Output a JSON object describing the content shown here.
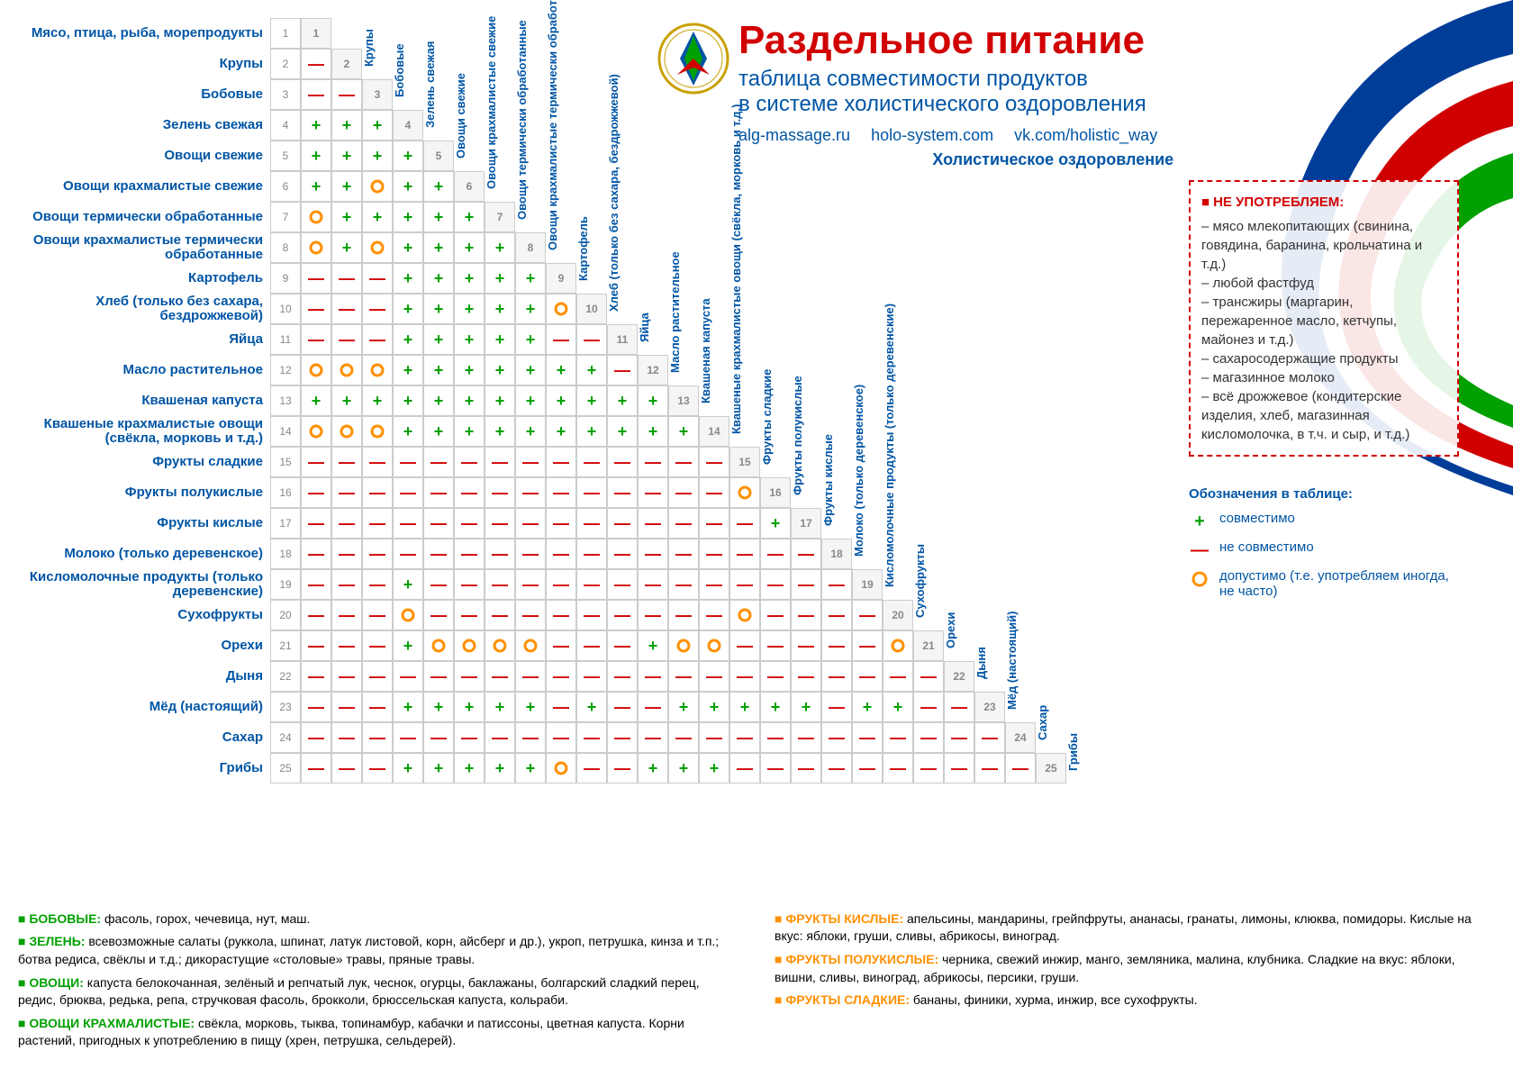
{
  "title": "Раздельное питание",
  "subtitle1": "таблица совместимости продуктов",
  "subtitle2": "в системе холистического оздоровления",
  "links": [
    "alg-massage.ru",
    "holo-system.com",
    "vk.com/holistic_way"
  ],
  "holistic_label": "Холистическое оздоровление",
  "colors": {
    "title": "#d10000",
    "primary": "#0055a5",
    "plus": "#00a000",
    "minus": "#d10000",
    "circle": "#ff9000",
    "swoosh_blue": "#003d99",
    "swoosh_red": "#d10000",
    "swoosh_green": "#00a000"
  },
  "avoid": {
    "title": "НЕ УПОТРЕБЛЯЕМ:",
    "items": [
      "мясо млекопитающих (свинина, говядина, баранина, крольчатина и т.д.)",
      "любой фастфуд",
      "трансжиры (маргарин, пережаренное масло, кетчупы, майонез и т.д.)",
      "сахаросодержащие продукты",
      "магазинное молоко",
      "всё дрожжевое (кондитерские изделия, хлеб, магазинная кисломолочка, в т.ч. и сыр, и т.д.)"
    ]
  },
  "legend": {
    "title": "Обозначения в таблице:",
    "items": [
      {
        "sym": "+",
        "cls": "plus",
        "text": "совместимо"
      },
      {
        "sym": "—",
        "cls": "minus",
        "text": "не совместимо"
      },
      {
        "sym": "O",
        "cls": "circ",
        "text": "допустимо (т.е. употребляем иногда, не часто)"
      }
    ]
  },
  "categories": [
    "Мясо, птица, рыба, морепродукты",
    "Крупы",
    "Бобовые",
    "Зелень свежая",
    "Овощи свежие",
    "Овощи крахмалистые свежие",
    "Овощи термически обработанные",
    "Овощи крахмалистые термически обработанные",
    "Картофель",
    "Хлеб (только без сахара, бездрожжевой)",
    "Яйца",
    "Масло растительное",
    "Квашеная капуста",
    "Квашеные крахмалистые овощи (свёкла, морковь и т.д.)",
    "Фрукты сладкие",
    "Фрукты полукислые",
    "Фрукты кислые",
    "Молоко (только деревенское)",
    "Кисломолочные продукты (только деревенские)",
    "Сухофрукты",
    "Орехи",
    "Дыня",
    "Мёд (настоящий)",
    "Сахар",
    "Грибы"
  ],
  "matrix": [
    [],
    [
      "-"
    ],
    [
      "-",
      "-"
    ],
    [
      "+",
      "+",
      "+"
    ],
    [
      "+",
      "+",
      "+",
      "+"
    ],
    [
      "+",
      "+",
      "O",
      "+",
      "+"
    ],
    [
      "O",
      "+",
      "+",
      "+",
      "+",
      "+"
    ],
    [
      "O",
      "+",
      "O",
      "+",
      "+",
      "+",
      "+"
    ],
    [
      "-",
      "-",
      "-",
      "+",
      "+",
      "+",
      "+",
      "+"
    ],
    [
      "-",
      "-",
      "-",
      "+",
      "+",
      "+",
      "+",
      "+",
      "O"
    ],
    [
      "-",
      "-",
      "-",
      "+",
      "+",
      "+",
      "+",
      "+",
      "-",
      "-"
    ],
    [
      "O",
      "O",
      "O",
      "+",
      "+",
      "+",
      "+",
      "+",
      "+",
      "+",
      "-"
    ],
    [
      "+",
      "+",
      "+",
      "+",
      "+",
      "+",
      "+",
      "+",
      "+",
      "+",
      "+",
      "+"
    ],
    [
      "O",
      "O",
      "O",
      "+",
      "+",
      "+",
      "+",
      "+",
      "+",
      "+",
      "+",
      "+",
      "+"
    ],
    [
      "-",
      "-",
      "-",
      "-",
      "-",
      "-",
      "-",
      "-",
      "-",
      "-",
      "-",
      "-",
      "-",
      "-"
    ],
    [
      "-",
      "-",
      "-",
      "-",
      "-",
      "-",
      "-",
      "-",
      "-",
      "-",
      "-",
      "-",
      "-",
      "-",
      "O"
    ],
    [
      "-",
      "-",
      "-",
      "-",
      "-",
      "-",
      "-",
      "-",
      "-",
      "-",
      "-",
      "-",
      "-",
      "-",
      "-",
      "+"
    ],
    [
      "-",
      "-",
      "-",
      "-",
      "-",
      "-",
      "-",
      "-",
      "-",
      "-",
      "-",
      "-",
      "-",
      "-",
      "-",
      "-",
      "-"
    ],
    [
      "-",
      "-",
      "-",
      "+",
      "-",
      "-",
      "-",
      "-",
      "-",
      "-",
      "-",
      "-",
      "-",
      "-",
      "-",
      "-",
      "-",
      "-"
    ],
    [
      "-",
      "-",
      "-",
      "O",
      "-",
      "-",
      "-",
      "-",
      "-",
      "-",
      "-",
      "-",
      "-",
      "-",
      "O",
      "-",
      "-",
      "-",
      "-"
    ],
    [
      "-",
      "-",
      "-",
      "+",
      "O",
      "O",
      "O",
      "O",
      "-",
      "-",
      "-",
      "+",
      "O",
      "O",
      "-",
      "-",
      "-",
      "-",
      "-",
      "O"
    ],
    [
      "-",
      "-",
      "-",
      "-",
      "-",
      "-",
      "-",
      "-",
      "-",
      "-",
      "-",
      "-",
      "-",
      "-",
      "-",
      "-",
      "-",
      "-",
      "-",
      "-",
      "-"
    ],
    [
      "-",
      "-",
      "-",
      "+",
      "+",
      "+",
      "+",
      "+",
      "-",
      "+",
      "-",
      "-",
      "+",
      "+",
      "+",
      "+",
      "+",
      "-",
      "+",
      "+",
      "-",
      "-"
    ],
    [
      "-",
      "-",
      "-",
      "-",
      "-",
      "-",
      "-",
      "-",
      "-",
      "-",
      "-",
      "-",
      "-",
      "-",
      "-",
      "-",
      "-",
      "-",
      "-",
      "-",
      "-",
      "-",
      "-"
    ],
    [
      "-",
      "-",
      "-",
      "+",
      "+",
      "+",
      "+",
      "+",
      "O",
      "-",
      "-",
      "+",
      "+",
      "+",
      "-",
      "-",
      "-",
      "-",
      "-",
      "-",
      "-",
      "-",
      "-",
      "-"
    ]
  ],
  "footer_left": [
    {
      "label": "БОБОВЫЕ:",
      "text": "фасоль, горох, чечевица, нут, маш."
    },
    {
      "label": "ЗЕЛЕНЬ:",
      "text": "всевозможные салаты (руккола, шпинат, латук листовой, корн, айсберг и др.), укроп, петрушка, кинза и т.п.; ботва редиса, свёклы и т.д.; дикорастущие «столовые» травы, пряные травы."
    },
    {
      "label": "ОВОЩИ:",
      "text": "капуста белокочанная, зелёный и репчатый лук, чеснок, огурцы, баклажаны, болгарский сладкий перец, редис, брюква, редька, репа, стручковая фасоль, брокколи, брюссельская капуста, кольраби."
    },
    {
      "label": "ОВОЩИ КРАХМАЛИСТЫЕ:",
      "text": "свёкла, морковь, тыква, топинамбур, кабачки и патиссоны, цветная капуста. Корни растений, пригодных к употреблению в пищу (хрен, петрушка, сельдерей)."
    }
  ],
  "footer_right": [
    {
      "label": "ФРУКТЫ КИСЛЫЕ:",
      "text": "апельсины, мандарины, грейпфруты, ананасы, гранаты, лимоны, клюква, помидоры. Кислые на вкус: яблоки, груши, сливы, абрикосы, виноград."
    },
    {
      "label": "ФРУКТЫ ПОЛУКИСЛЫЕ:",
      "text": "черника, свежий инжир, манго, земляника, малина, клубника. Сладкие на вкус: яблоки, вишни, сливы, виноград, абрикосы, персики, груши."
    },
    {
      "label": "ФРУКТЫ СЛАДКИЕ:",
      "text": "бананы, финики, хурма, инжир, все сухофрукты."
    }
  ]
}
